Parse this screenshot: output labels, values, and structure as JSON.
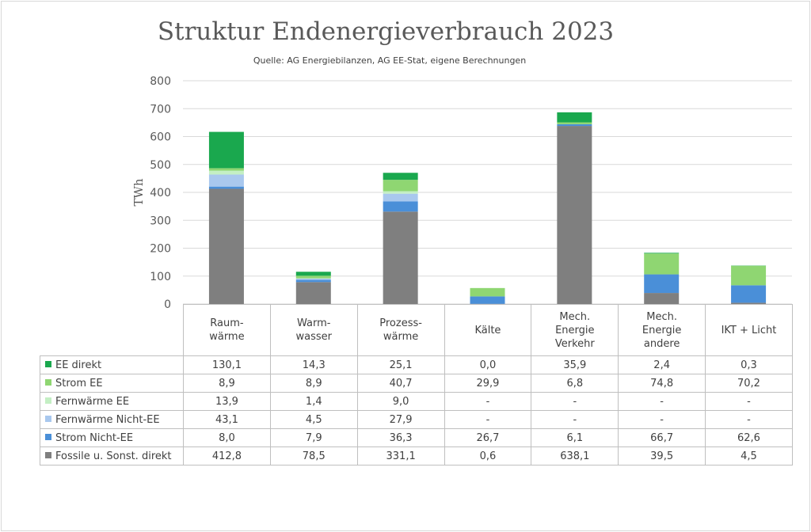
{
  "chart_data": {
    "type": "bar",
    "stacked": true,
    "title": "Struktur Endenergieverbrauch 2023",
    "subtitle": "Quelle: AG Energiebilanzen, AG EE-Stat, eigene Berechnungen",
    "ylabel": "TWh",
    "ylim": [
      0,
      800
    ],
    "yticks": [
      "0",
      "100",
      "200",
      "300",
      "400",
      "500",
      "600",
      "700",
      "800"
    ],
    "grid": true,
    "categories": [
      "Raum-\nwärme",
      "Warm-\nwasser",
      "Prozess-\nwärme",
      "Kälte",
      "Mech.\nEnergie\nVerkehr",
      "Mech.\nEnergie\nandere",
      "IKT + Licht"
    ],
    "series": [
      {
        "name": "Fossile u. Sonst. direkt",
        "color": "#7f7f7f",
        "values": [
          412.8,
          78.5,
          331.1,
          0.6,
          638.1,
          39.5,
          4.5
        ],
        "labels": [
          "412,8",
          "78,5",
          "331,1",
          "0,6",
          "638,1",
          "39,5",
          "4,5"
        ]
      },
      {
        "name": "Strom Nicht-EE",
        "color": "#4a8fd8",
        "values": [
          8.0,
          7.9,
          36.3,
          26.7,
          6.1,
          66.7,
          62.6
        ],
        "labels": [
          "8,0",
          "7,9",
          "36,3",
          "26,7",
          "6,1",
          "66,7",
          "62,6"
        ]
      },
      {
        "name": "Fernwärme Nicht-EE",
        "color": "#a9c8ee",
        "values": [
          43.1,
          4.5,
          27.9,
          null,
          null,
          null,
          null
        ],
        "labels": [
          "43,1",
          "4,5",
          "27,9",
          "-",
          "-",
          "-",
          "-"
        ]
      },
      {
        "name": "Fernwärme EE",
        "color": "#c4efc4",
        "values": [
          13.9,
          1.4,
          9.0,
          null,
          null,
          null,
          null
        ],
        "labels": [
          "13,9",
          "1,4",
          "9,0",
          "-",
          "-",
          "-",
          "-"
        ]
      },
      {
        "name": "Strom EE",
        "color": "#8fd672",
        "values": [
          8.9,
          8.9,
          40.7,
          29.9,
          6.8,
          74.8,
          70.2
        ],
        "labels": [
          "8,9",
          "8,9",
          "40,7",
          "29,9",
          "6,8",
          "74,8",
          "70,2"
        ]
      },
      {
        "name": "EE direkt",
        "color": "#1aa84e",
        "values": [
          130.1,
          14.3,
          25.1,
          0.0,
          35.9,
          2.4,
          0.3
        ],
        "labels": [
          "130,1",
          "14,3",
          "25,1",
          "0,0",
          "35,9",
          "2,4",
          "0,3"
        ]
      }
    ],
    "table_row_order": [
      "EE direkt",
      "Strom EE",
      "Fernwärme EE",
      "Fernwärme Nicht-EE",
      "Strom Nicht-EE",
      "Fossile u. Sonst. direkt"
    ]
  }
}
